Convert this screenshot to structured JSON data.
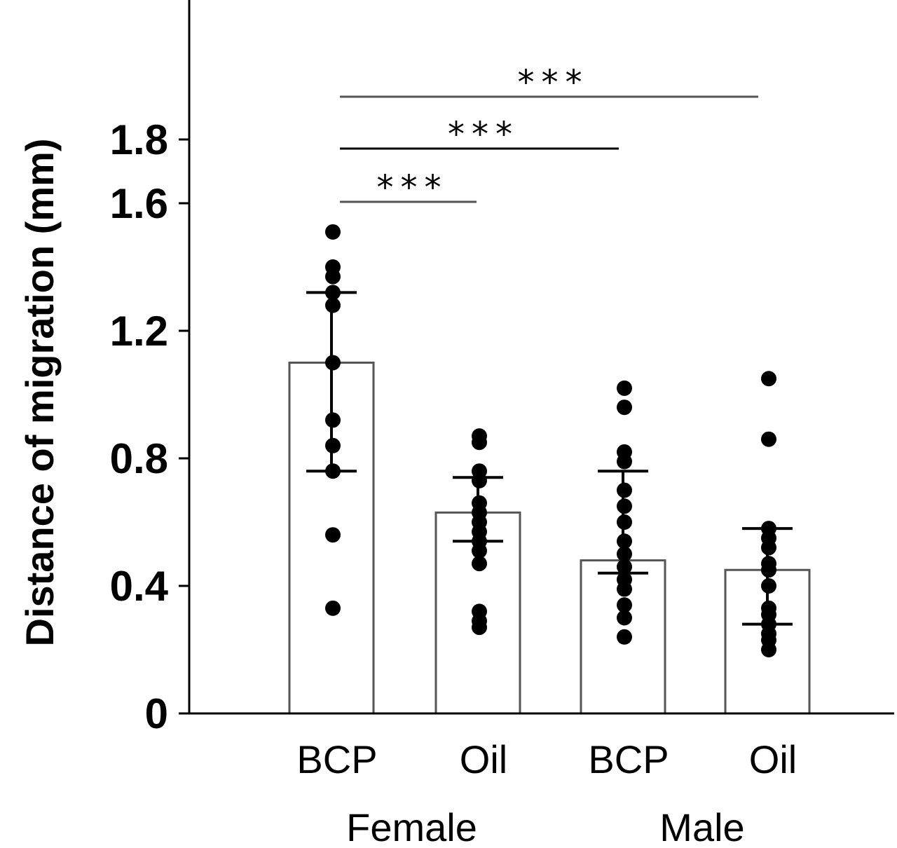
{
  "chart_data": {
    "type": "bar",
    "ylabel": "Distance of migration (mm)",
    "ylim": [
      0,
      2.0
    ],
    "yticks": [
      "0",
      "0.4",
      "0.8",
      "1.2",
      "1.6",
      "1.8"
    ],
    "ytick_values": [
      0,
      0.4,
      0.8,
      1.2,
      1.6,
      1.8
    ],
    "grid": false,
    "categories": [
      "BCP",
      "Oil",
      "BCP",
      "Oil"
    ],
    "groups": [
      {
        "label": "Female",
        "categories": [
          0,
          1
        ]
      },
      {
        "label": "Male",
        "categories": [
          2,
          3
        ]
      }
    ],
    "series": [
      {
        "values": [
          1.1,
          0.63,
          0.48,
          0.45
        ],
        "error_low": [
          0.76,
          0.54,
          0.44,
          0.28
        ],
        "error_high": [
          1.32,
          0.74,
          0.76,
          0.58
        ],
        "points": [
          [
            1.51,
            1.4,
            1.37,
            1.32,
            1.28,
            1.1,
            0.92,
            0.84,
            0.76,
            0.56,
            0.33
          ],
          [
            0.87,
            0.85,
            0.76,
            0.73,
            0.66,
            0.63,
            0.6,
            0.57,
            0.54,
            0.51,
            0.47,
            0.32,
            0.29,
            0.27
          ],
          [
            1.02,
            0.96,
            0.82,
            0.79,
            0.7,
            0.65,
            0.6,
            0.54,
            0.5,
            0.46,
            0.42,
            0.39,
            0.34,
            0.3,
            0.24
          ],
          [
            1.05,
            0.86,
            0.58,
            0.55,
            0.52,
            0.47,
            0.45,
            0.4,
            0.33,
            0.31,
            0.28,
            0.25,
            0.23,
            0.2
          ]
        ]
      }
    ],
    "significance": [
      {
        "from": 0,
        "to": 1,
        "label": "***"
      },
      {
        "from": 0,
        "to": 2,
        "label": "***"
      },
      {
        "from": 0,
        "to": 3,
        "label": "***"
      }
    ]
  }
}
